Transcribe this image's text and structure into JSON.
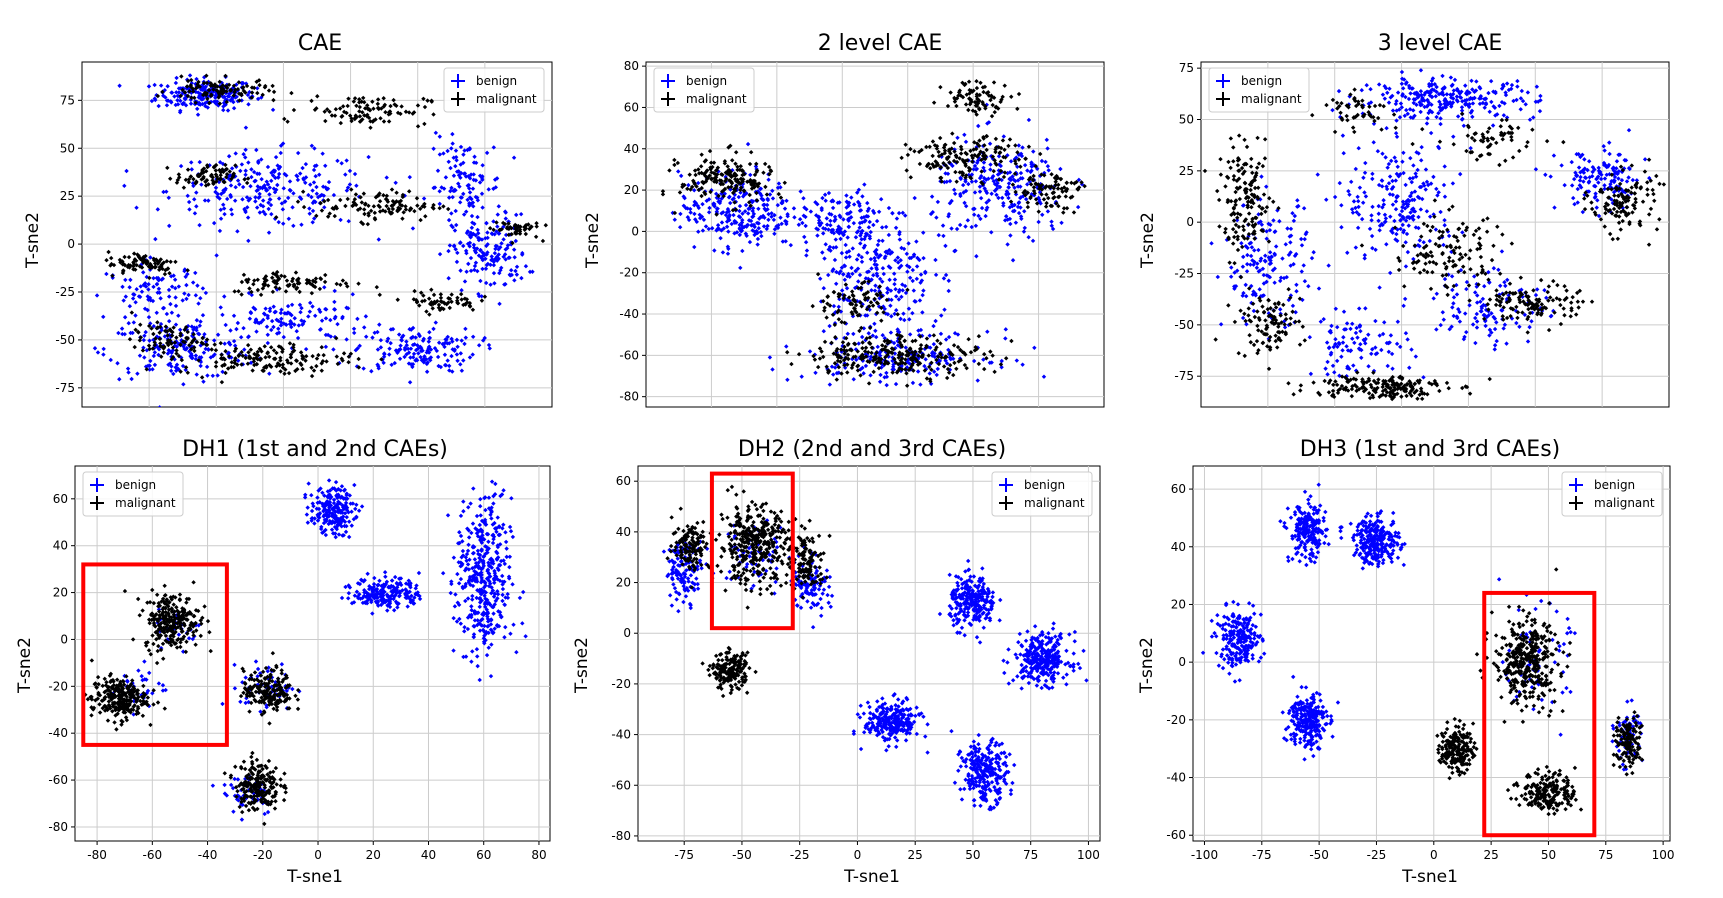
{
  "chart_data": [
    {
      "id": "cae",
      "type": "scatter",
      "title": "CAE",
      "xlabel": "",
      "ylabel": "T-sne2",
      "xlim": [
        -95,
        95
      ],
      "ylim": [
        -85,
        95
      ],
      "yticks": [
        75,
        50,
        25,
        0,
        -25,
        -50,
        -75
      ],
      "xticks": [],
      "grid": true,
      "legend": "top-right",
      "series": [
        {
          "name": "benign",
          "color": "#0000ff",
          "clusters": [
            [
              -45,
              78,
              20,
              8,
              220
            ],
            [
              -20,
              28,
              40,
              20,
              250
            ],
            [
              -55,
              -55,
              30,
              15,
              180
            ],
            [
              40,
              -55,
              25,
              12,
              160
            ],
            [
              70,
              -5,
              15,
              20,
              150
            ],
            [
              60,
              30,
              15,
              25,
              120
            ],
            [
              -65,
              -25,
              20,
              15,
              100
            ],
            [
              -10,
              -40,
              30,
              12,
              120
            ]
          ]
        },
        {
          "name": "malignant",
          "color": "#000000",
          "clusters": [
            [
              -40,
              80,
              20,
              6,
              100
            ],
            [
              20,
              70,
              25,
              8,
              100
            ],
            [
              -45,
              35,
              12,
              6,
              80
            ],
            [
              25,
              20,
              25,
              8,
              110
            ],
            [
              -70,
              -10,
              15,
              6,
              80
            ],
            [
              -10,
              -20,
              25,
              6,
              90
            ],
            [
              50,
              -30,
              15,
              5,
              60
            ],
            [
              -20,
              -60,
              35,
              8,
              150
            ],
            [
              -60,
              -50,
              15,
              8,
              80
            ],
            [
              80,
              8,
              10,
              5,
              50
            ]
          ]
        }
      ]
    },
    {
      "id": "cae2",
      "type": "scatter",
      "title": "2 level CAE",
      "xlabel": "",
      "ylabel": "T-sne2",
      "xlim": [
        -100,
        100
      ],
      "ylim": [
        -85,
        82
      ],
      "yticks": [
        80,
        60,
        40,
        20,
        0,
        -20,
        -40,
        -60,
        -80
      ],
      "xticks": [],
      "grid": true,
      "legend": "top-left",
      "series": [
        {
          "name": "benign",
          "color": "#0000ff",
          "clusters": [
            [
              -60,
              10,
              25,
              18,
              260
            ],
            [
              0,
              -20,
              25,
              30,
              260
            ],
            [
              55,
              20,
              30,
              25,
              260
            ],
            [
              10,
              -60,
              40,
              12,
              200
            ],
            [
              -15,
              5,
              20,
              15,
              120
            ]
          ]
        },
        {
          "name": "malignant",
          "color": "#000000",
          "clusters": [
            [
              -65,
              25,
              20,
              12,
              180
            ],
            [
              40,
              35,
              25,
              10,
              150
            ],
            [
              45,
              65,
              15,
              8,
              80
            ],
            [
              10,
              -60,
              40,
              10,
              250
            ],
            [
              75,
              20,
              15,
              10,
              90
            ],
            [
              -10,
              -35,
              20,
              10,
              80
            ]
          ]
        }
      ]
    },
    {
      "id": "cae3",
      "type": "scatter",
      "title": "3 level CAE",
      "xlabel": "",
      "ylabel": "T-sne2",
      "xlim": [
        -110,
        100
      ],
      "ylim": [
        -90,
        78
      ],
      "yticks": [
        75,
        50,
        25,
        0,
        -25,
        -50,
        -75
      ],
      "xticks": [],
      "grid": true,
      "legend": "top-left",
      "series": [
        {
          "name": "benign",
          "color": "#0000ff",
          "clusters": [
            [
              0,
              60,
              40,
              10,
              260
            ],
            [
              -20,
              10,
              25,
              30,
              220
            ],
            [
              -80,
              -20,
              20,
              30,
              160
            ],
            [
              70,
              20,
              20,
              15,
              140
            ],
            [
              -40,
              -60,
              25,
              15,
              100
            ],
            [
              20,
              -40,
              25,
              20,
              120
            ]
          ]
        },
        {
          "name": "malignant",
          "color": "#000000",
          "clusters": [
            [
              -90,
              10,
              12,
              25,
              150
            ],
            [
              -80,
              -50,
              15,
              15,
              100
            ],
            [
              -30,
              -80,
              30,
              6,
              180
            ],
            [
              40,
              -40,
              20,
              10,
              120
            ],
            [
              80,
              10,
              15,
              15,
              120
            ],
            [
              0,
              -15,
              25,
              20,
              120
            ],
            [
              -40,
              55,
              15,
              8,
              50
            ],
            [
              20,
              40,
              25,
              10,
              60
            ]
          ]
        }
      ]
    },
    {
      "id": "dh1",
      "type": "scatter",
      "title": "DH1 (1st and 2nd CAEs)",
      "xlabel": "T-sne1",
      "ylabel": "T-sne2",
      "xlim": [
        -88,
        84
      ],
      "ylim": [
        -86,
        74
      ],
      "xticks": [
        -80,
        -60,
        -40,
        -20,
        0,
        20,
        40,
        60,
        80
      ],
      "yticks": [
        60,
        40,
        20,
        0,
        -20,
        -40,
        -60,
        -80
      ],
      "grid": true,
      "legend": "top-left",
      "series": [
        {
          "name": "benign",
          "color": "#0000ff",
          "clusters": [
            [
              5,
              55,
              8,
              10,
              200
            ],
            [
              25,
              20,
              12,
              7,
              200
            ],
            [
              60,
              25,
              10,
              35,
              400
            ],
            [
              -18,
              -20,
              10,
              10,
              60
            ],
            [
              -65,
              -20,
              10,
              10,
              30
            ],
            [
              -25,
              -65,
              10,
              10,
              50
            ],
            [
              -50,
              5,
              8,
              8,
              30
            ]
          ]
        },
        {
          "name": "malignant",
          "color": "#000000",
          "clusters": [
            [
              -53,
              8,
              10,
              12,
              250
            ],
            [
              -72,
              -25,
              10,
              9,
              250
            ],
            [
              -18,
              -22,
              9,
              9,
              180
            ],
            [
              -22,
              -62,
              8,
              11,
              200
            ]
          ]
        }
      ]
    },
    {
      "id": "dh2",
      "type": "scatter",
      "title": "DH2 (2nd and 3rd CAEs)",
      "xlabel": "T-sne1",
      "ylabel": "T-sne2",
      "xlim": [
        -95,
        105
      ],
      "ylim": [
        -82,
        66
      ],
      "xticks": [
        -75,
        -50,
        -25,
        0,
        25,
        50,
        75,
        100
      ],
      "yticks": [
        60,
        40,
        20,
        0,
        -20,
        -40,
        -60,
        -80
      ],
      "grid": true,
      "legend": "top-right",
      "series": [
        {
          "name": "benign",
          "color": "#0000ff",
          "clusters": [
            [
              50,
              12,
              10,
              10,
              250
            ],
            [
              80,
              -10,
              12,
              10,
              280
            ],
            [
              15,
              -35,
              12,
              8,
              250
            ],
            [
              55,
              -55,
              10,
              12,
              250
            ],
            [
              -75,
              25,
              8,
              12,
              120
            ],
            [
              -20,
              20,
              8,
              12,
              100
            ],
            [
              -45,
              30,
              15,
              15,
              60
            ]
          ]
        },
        {
          "name": "malignant",
          "color": "#000000",
          "clusters": [
            [
              -45,
              35,
              15,
              15,
              350
            ],
            [
              -72,
              35,
              8,
              10,
              120
            ],
            [
              -22,
              28,
              8,
              12,
              120
            ],
            [
              -55,
              -15,
              8,
              7,
              180
            ]
          ]
        }
      ]
    },
    {
      "id": "dh3",
      "type": "scatter",
      "title": "DH3 (1st and 3rd CAEs)",
      "xlabel": "T-sne1",
      "ylabel": "T-sne2",
      "xlim": [
        -105,
        103
      ],
      "ylim": [
        -62,
        68
      ],
      "xticks": [
        -100,
        -75,
        -50,
        -25,
        0,
        25,
        50,
        75,
        100
      ],
      "yticks": [
        60,
        40,
        20,
        0,
        -20,
        -40,
        -60
      ],
      "grid": true,
      "legend": "top-right",
      "series": [
        {
          "name": "benign",
          "color": "#0000ff",
          "clusters": [
            [
              -55,
              45,
              8,
              10,
              200
            ],
            [
              -25,
              42,
              10,
              8,
              250
            ],
            [
              -85,
              8,
              10,
              10,
              220
            ],
            [
              -55,
              -20,
              8,
              10,
              250
            ],
            [
              45,
              0,
              14,
              18,
              60
            ],
            [
              85,
              -25,
              6,
              10,
              60
            ]
          ]
        },
        {
          "name": "malignant",
          "color": "#000000",
          "clusters": [
            [
              40,
              0,
              14,
              15,
              350
            ],
            [
              10,
              -30,
              7,
              8,
              180
            ],
            [
              50,
              -45,
              12,
              7,
              200
            ],
            [
              85,
              -28,
              6,
              9,
              120
            ]
          ]
        }
      ]
    }
  ],
  "annotations": [
    {
      "panel": "dh1",
      "type": "rect",
      "color": "#ff0000",
      "x": [
        -85,
        -33
      ],
      "y": [
        -45,
        32
      ]
    },
    {
      "panel": "dh2",
      "type": "rect",
      "color": "#ff0000",
      "x": [
        -63,
        -28
      ],
      "y": [
        2,
        63
      ]
    },
    {
      "panel": "dh3",
      "type": "rect",
      "color": "#ff0000",
      "x": [
        22,
        70
      ],
      "y": [
        -60,
        24
      ]
    }
  ]
}
